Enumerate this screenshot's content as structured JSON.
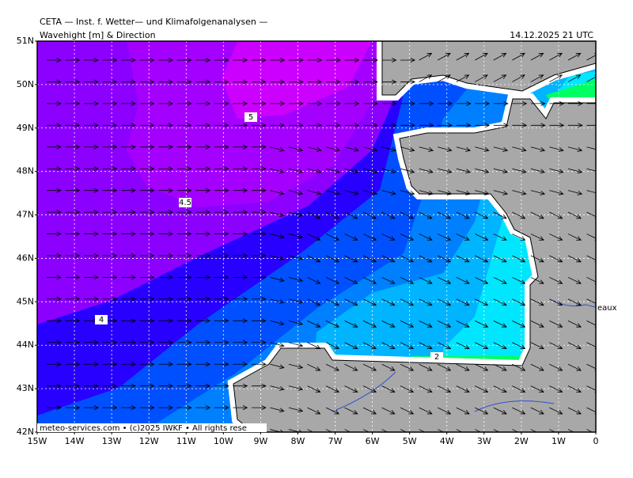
{
  "header": {
    "title": "CETA — Inst. f. Wetter— und Klimafolgenanalysen —",
    "subtitle": "Wavehight [m] & Direction",
    "timestamp": "14.12.2025 21 UTC"
  },
  "map": {
    "lat_labels": [
      "51N",
      "50N",
      "49N",
      "48N",
      "47N",
      "46N",
      "45N",
      "44N",
      "43N",
      "42N"
    ],
    "lon_labels": [
      "15W",
      "14W",
      "13W",
      "12W",
      "11W",
      "10W",
      "9W",
      "8W",
      "7W",
      "6W",
      "5W",
      "4W",
      "3W",
      "2W",
      "1W",
      "0"
    ],
    "contour_labels": [
      "5",
      "4.5",
      "4",
      "2"
    ],
    "place_label": "eaux"
  },
  "footer": {
    "credit": "meteo-services.com • (c)2025 IWKF • All rights rese"
  }
}
